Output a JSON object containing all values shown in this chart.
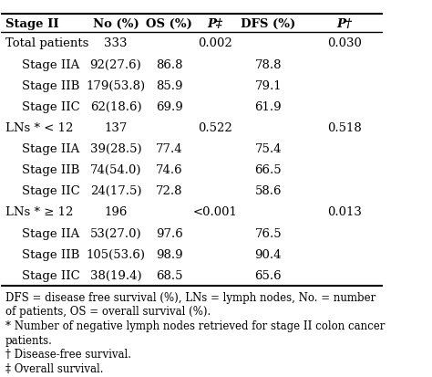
{
  "headers": [
    "Stage II",
    "No (%)",
    "OS (%)",
    "P‡",
    "DFS (%)",
    "P†"
  ],
  "rows": [
    {
      "label": "Total patients",
      "indent": 0,
      "no": "333",
      "os": "",
      "p_os": "0.002",
      "dfs": "",
      "p_dfs": "0.030"
    },
    {
      "label": "Stage IIA",
      "indent": 1,
      "no": "92(27.6)",
      "os": "86.8",
      "p_os": "",
      "dfs": "78.8",
      "p_dfs": ""
    },
    {
      "label": "Stage IIB",
      "indent": 1,
      "no": "179(53.8)",
      "os": "85.9",
      "p_os": "",
      "dfs": "79.1",
      "p_dfs": ""
    },
    {
      "label": "Stage IIC",
      "indent": 1,
      "no": "62(18.6)",
      "os": "69.9",
      "p_os": "",
      "dfs": "61.9",
      "p_dfs": ""
    },
    {
      "label": "LNs * < 12",
      "indent": 0,
      "no": "137",
      "os": "",
      "p_os": "0.522",
      "dfs": "",
      "p_dfs": "0.518"
    },
    {
      "label": "Stage IIA",
      "indent": 1,
      "no": "39(28.5)",
      "os": "77.4",
      "p_os": "",
      "dfs": "75.4",
      "p_dfs": ""
    },
    {
      "label": "Stage IIB",
      "indent": 1,
      "no": "74(54.0)",
      "os": "74.6",
      "p_os": "",
      "dfs": "66.5",
      "p_dfs": ""
    },
    {
      "label": "Stage IIC",
      "indent": 1,
      "no": "24(17.5)",
      "os": "72.8",
      "p_os": "",
      "dfs": "58.6",
      "p_dfs": ""
    },
    {
      "label": "LNs * ≥ 12",
      "indent": 0,
      "no": "196",
      "os": "",
      "p_os": "<0.001",
      "dfs": "",
      "p_dfs": "0.013"
    },
    {
      "label": "Stage IIA",
      "indent": 1,
      "no": "53(27.0)",
      "os": "97.6",
      "p_os": "",
      "dfs": "76.5",
      "p_dfs": ""
    },
    {
      "label": "Stage IIB",
      "indent": 1,
      "no": "105(53.6)",
      "os": "98.9",
      "p_os": "",
      "dfs": "90.4",
      "p_dfs": ""
    },
    {
      "label": "Stage IIC",
      "indent": 1,
      "no": "38(19.4)",
      "os": "68.5",
      "p_os": "",
      "dfs": "65.6",
      "p_dfs": ""
    }
  ],
  "footnotes": [
    "DFS = disease free survival (%), LNs = lymph nodes, No. = number",
    "of patients, OS = overall survival (%).",
    "* Number of negative lymph nodes retrieved for stage II colon cancer",
    "patients.",
    "† Disease-free survival.",
    "‡ Overall survival."
  ],
  "bg_color": "#ffffff",
  "text_color": "#000000",
  "header_line_color": "#000000",
  "fontsize": 9.5,
  "footnote_fontsize": 8.5
}
